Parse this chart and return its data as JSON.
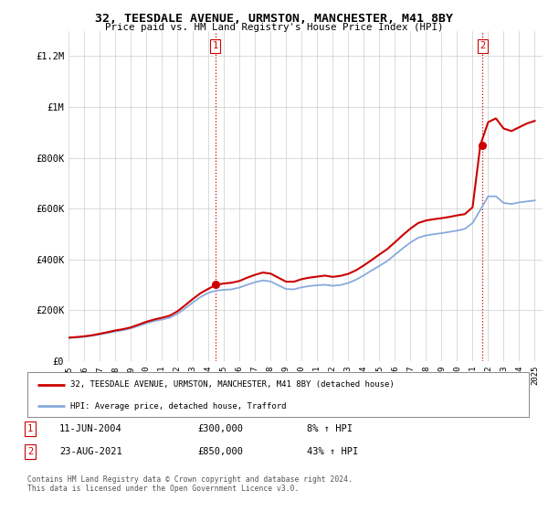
{
  "title": "32, TEESDALE AVENUE, URMSTON, MANCHESTER, M41 8BY",
  "subtitle": "Price paid vs. HM Land Registry's House Price Index (HPI)",
  "legend_label_red": "32, TEESDALE AVENUE, URMSTON, MANCHESTER, M41 8BY (detached house)",
  "legend_label_blue": "HPI: Average price, detached house, Trafford",
  "transaction1_date": "11-JUN-2004",
  "transaction1_price": "£300,000",
  "transaction1_hpi": "8% ↑ HPI",
  "transaction2_date": "23-AUG-2021",
  "transaction2_price": "£850,000",
  "transaction2_hpi": "43% ↑ HPI",
  "footer": "Contains HM Land Registry data © Crown copyright and database right 2024.\nThis data is licensed under the Open Government Licence v3.0.",
  "ylim": [
    0,
    1300000
  ],
  "yticks": [
    0,
    200000,
    400000,
    600000,
    800000,
    1000000,
    1200000
  ],
  "ytick_labels": [
    "£0",
    "£200K",
    "£400K",
    "£600K",
    "£800K",
    "£1M",
    "£1.2M"
  ],
  "color_red": "#cc0000",
  "color_blue": "#88aadd",
  "background_color": "#ffffff",
  "grid_color": "#cccccc",
  "vline_color": "#cc0000",
  "marker1_year": 2004.44,
  "marker1_value": 300000,
  "marker2_year": 2021.64,
  "marker2_value": 850000,
  "xlim_left": 1995.0,
  "xlim_right": 2025.5,
  "years_hpi": [
    1995.0,
    1995.5,
    1996.0,
    1996.5,
    1997.0,
    1997.5,
    1998.0,
    1998.5,
    1999.0,
    1999.5,
    2000.0,
    2000.5,
    2001.0,
    2001.5,
    2002.0,
    2002.5,
    2003.0,
    2003.5,
    2004.0,
    2004.5,
    2005.0,
    2005.5,
    2006.0,
    2006.5,
    2007.0,
    2007.5,
    2008.0,
    2008.5,
    2009.0,
    2009.5,
    2010.0,
    2010.5,
    2011.0,
    2011.5,
    2012.0,
    2012.5,
    2013.0,
    2013.5,
    2014.0,
    2014.5,
    2015.0,
    2015.5,
    2016.0,
    2016.5,
    2017.0,
    2017.5,
    2018.0,
    2018.5,
    2019.0,
    2019.5,
    2020.0,
    2020.5,
    2021.0,
    2021.5,
    2022.0,
    2022.5,
    2023.0,
    2023.5,
    2024.0,
    2024.5,
    2025.0
  ],
  "hpi_values": [
    90000,
    92000,
    95000,
    99000,
    104000,
    110000,
    116000,
    121000,
    128000,
    138000,
    148000,
    157000,
    163000,
    170000,
    185000,
    207000,
    230000,
    252000,
    268000,
    277000,
    280000,
    282000,
    289000,
    300000,
    310000,
    317000,
    313000,
    298000,
    283000,
    282000,
    290000,
    295000,
    298000,
    300000,
    296000,
    299000,
    307000,
    320000,
    337000,
    356000,
    374000,
    393000,
    418000,
    443000,
    466000,
    485000,
    494000,
    499000,
    503000,
    508000,
    513000,
    520000,
    543000,
    595000,
    648000,
    648000,
    622000,
    618000,
    624000,
    628000,
    632000
  ],
  "prop_values": [
    92000,
    94000,
    97000,
    101000,
    107000,
    113000,
    120000,
    125000,
    132000,
    143000,
    154000,
    163000,
    170000,
    178000,
    195000,
    219000,
    244000,
    267000,
    284000,
    300000,
    305000,
    308000,
    315000,
    328000,
    339000,
    348000,
    344000,
    328000,
    312000,
    312000,
    322000,
    328000,
    332000,
    336000,
    331000,
    335000,
    343000,
    357000,
    376000,
    397000,
    419000,
    440000,
    467000,
    495000,
    521000,
    543000,
    553000,
    558000,
    562000,
    567000,
    573000,
    578000,
    605000,
    850000,
    940000,
    955000,
    915000,
    905000,
    920000,
    935000,
    945000
  ]
}
